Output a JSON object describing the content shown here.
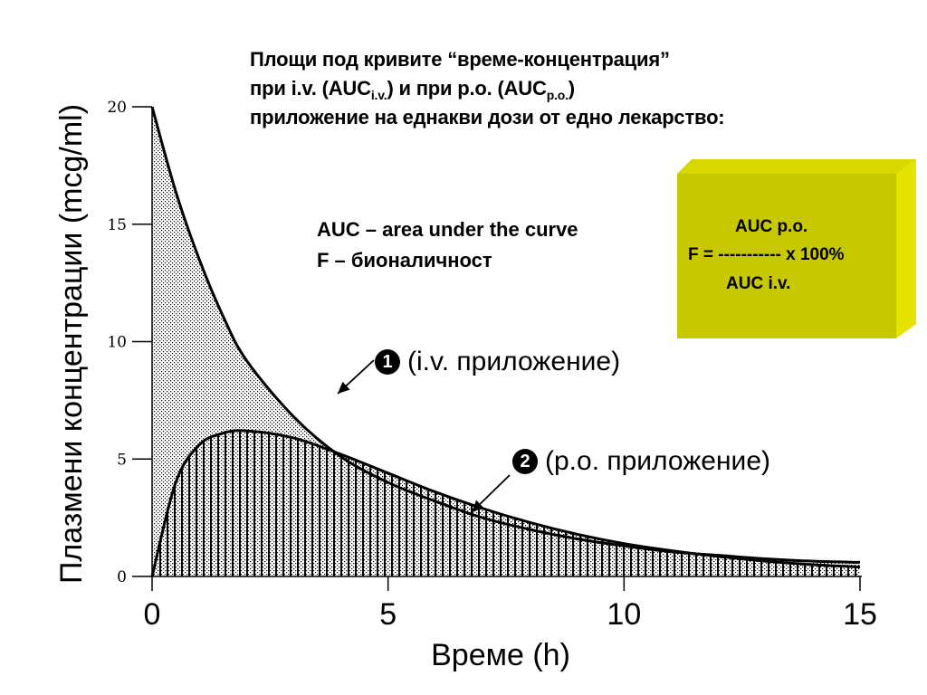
{
  "title": {
    "line1": "Площи под кривите “време-концентрация”",
    "line2_prefix": "при i.v. (AUC",
    "line2_sub1": "i.v.",
    "line2_mid": ") и  при p.o. (AUC",
    "line2_sub2": "p.o.",
    "line2_suffix": ")",
    "line3": "приложение на еднакви дози от едно лекарство:"
  },
  "definitions": {
    "auc": "AUC – area under the curve",
    "f": "F – бионаличност"
  },
  "formula": {
    "numerator": "AUC p.o.",
    "equation": "F = ----------- x 100%",
    "denominator": "AUC i.v.",
    "box_color": "#c8c800"
  },
  "curve_labels": {
    "iv_marker": "1",
    "iv_text": "(i.v. приложение)",
    "po_marker": "2",
    "po_text": "(p.o. приложение)"
  },
  "chart_data": {
    "type": "area",
    "xlabel": "Време (h)",
    "ylabel": "Плазмени концентрации (mcg/ml)",
    "xlim": [
      0,
      15
    ],
    "ylim": [
      0,
      20
    ],
    "x_ticks": [
      "0",
      "5",
      "10",
      "15"
    ],
    "y_ticks": [
      "0",
      "5",
      "10",
      "15",
      "20"
    ],
    "x": [
      0,
      0.5,
      1,
      1.5,
      2,
      3,
      4,
      5,
      6,
      7,
      8,
      9,
      10,
      11,
      12,
      13,
      14,
      15
    ],
    "series": [
      {
        "values": [
          20,
          16.4,
          13.5,
          11.1,
          9.2,
          6.8,
          5.1,
          4.0,
          3.2,
          2.5,
          2.0,
          1.6,
          1.3,
          1.05,
          0.9,
          0.75,
          0.65,
          0.6
        ],
        "fill": "stippled"
      },
      {
        "values": [
          0,
          4.0,
          5.6,
          6.1,
          6.2,
          5.9,
          5.2,
          4.4,
          3.6,
          2.9,
          2.3,
          1.8,
          1.4,
          1.1,
          0.85,
          0.65,
          0.5,
          0.4
        ],
        "fill": "vertical-hatch"
      }
    ]
  }
}
